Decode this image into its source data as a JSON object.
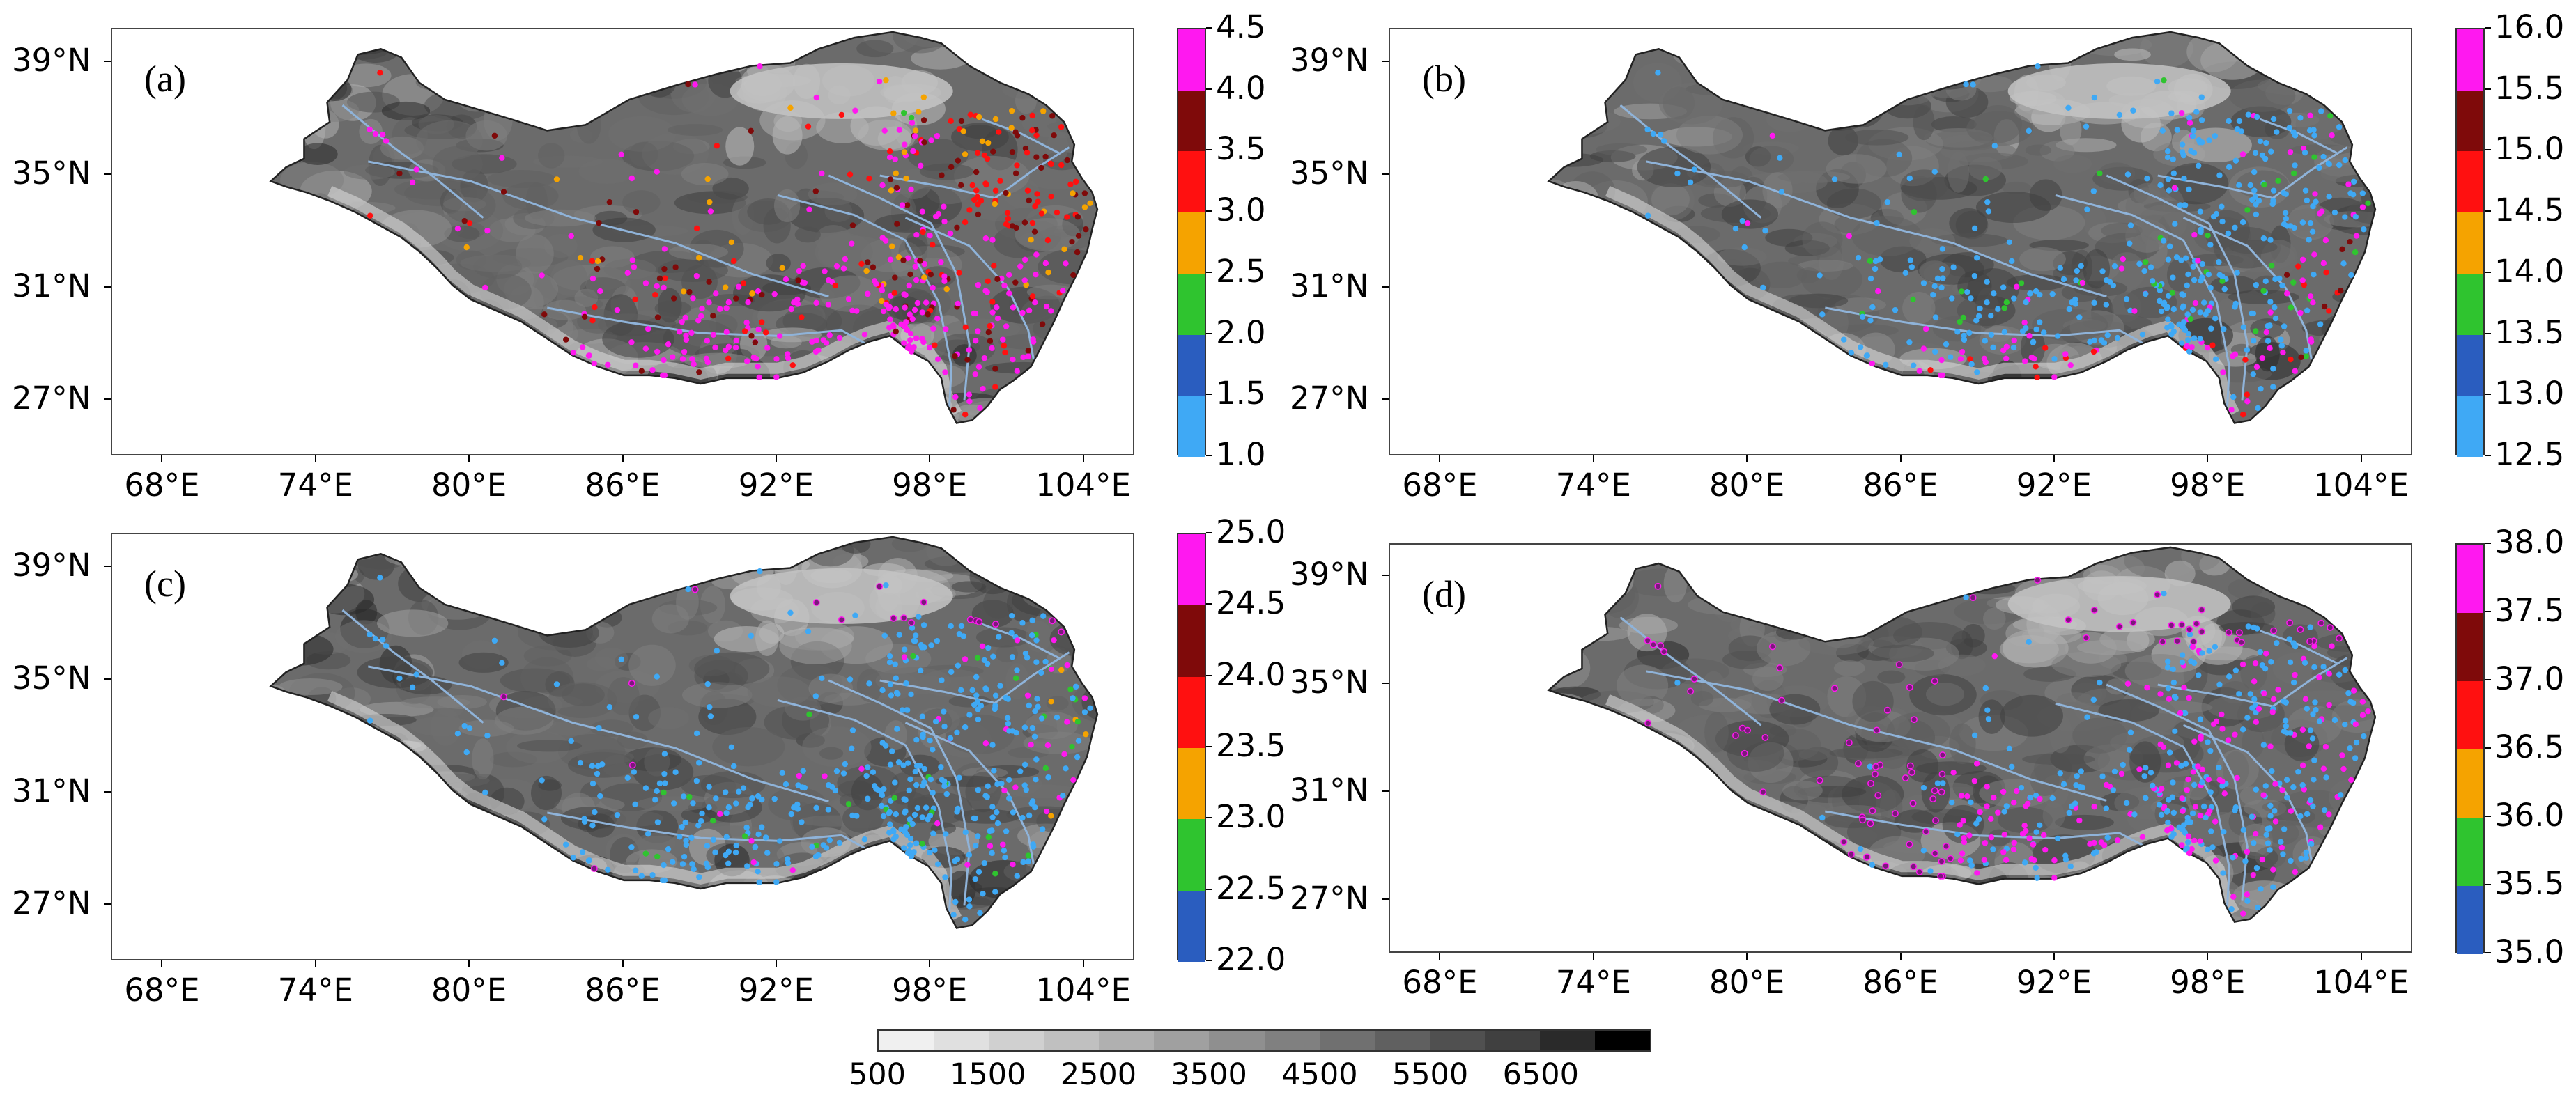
{
  "figure": {
    "x_ticks": [
      "68°E",
      "74°E",
      "80°E",
      "86°E",
      "92°E",
      "98°E",
      "104°E"
    ],
    "y_ticks": [
      "39°N",
      "35°N",
      "31°N",
      "27°N"
    ],
    "panels": [
      {
        "id": "a",
        "label": "(a)",
        "cbar_ticks": [
          "4.5",
          "4.0",
          "3.5",
          "3.0",
          "2.5",
          "2.0",
          "1.5",
          "1.0"
        ]
      },
      {
        "id": "b",
        "label": "(b)",
        "cbar_ticks": [
          "16.0",
          "15.5",
          "15.0",
          "14.5",
          "14.0",
          "13.5",
          "13.0",
          "12.5"
        ]
      },
      {
        "id": "c",
        "label": "(c)",
        "cbar_ticks": [
          "25.0",
          "24.5",
          "24.0",
          "23.5",
          "23.0",
          "22.5",
          "22.0"
        ]
      },
      {
        "id": "d",
        "label": "(d)",
        "cbar_ticks": [
          "38.0",
          "37.5",
          "37.0",
          "36.5",
          "36.0",
          "35.5",
          "35.0"
        ]
      }
    ],
    "elevation_bar": {
      "labels": [
        "500",
        "1500",
        "2500",
        "3500",
        "4500",
        "5500",
        "6500"
      ],
      "colors": [
        "#f0f0f0",
        "#e0e0e0",
        "#d0d0d0",
        "#c0c0c0",
        "#b0b0b0",
        "#a0a0a0",
        "#8f8f8f",
        "#808080",
        "#707070",
        "#606060",
        "#505050",
        "#404040",
        "#2a2a2a",
        "#000000"
      ]
    },
    "category_colors": {
      "light_blue": "#3fa9f5",
      "blue": "#2a5dbf",
      "green": "#2fc42f",
      "orange": "#f5a300",
      "red": "#ff1010",
      "dark_red": "#7f0a0a",
      "magenta": "#ff18f0"
    }
  }
}
